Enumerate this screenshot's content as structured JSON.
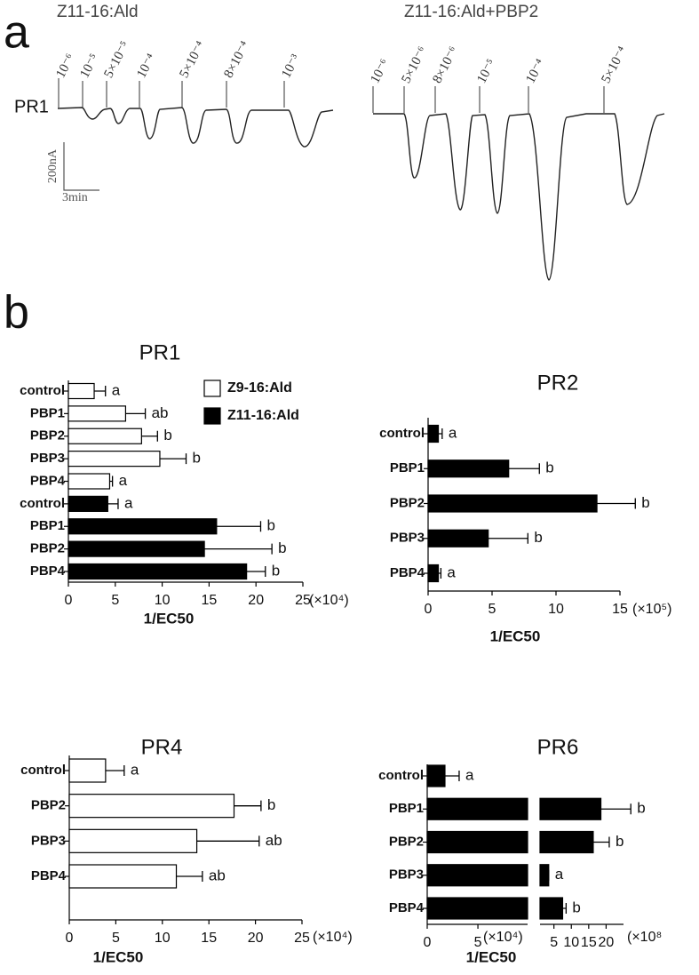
{
  "panel_a": {
    "label": "a",
    "left_title": "Z11-16:Ald",
    "right_title": "Z11-16:Ald+PBP2",
    "row_label": "PR1",
    "scale_current": "200nA",
    "scale_time": "3min",
    "left_doses": [
      "10⁻⁶",
      "10⁻⁵",
      "5×10⁻⁵",
      "10⁻⁴",
      "5×10⁻⁴",
      "8×10⁻⁴",
      "10⁻³"
    ],
    "right_doses": [
      "10⁻⁶",
      "5×10⁻⁶",
      "8×10⁻⁶",
      "10⁻⁵",
      "10⁻⁴",
      "5×10⁻⁴"
    ]
  },
  "panel_b": {
    "label": "b"
  },
  "chart_data": [
    {
      "type": "hbar",
      "title": "PR1",
      "xlabel": "1/EC50",
      "x_unit": "(×10⁴)",
      "categories": [
        "control",
        "PBP1",
        "PBP2",
        "PBP3",
        "PBP4",
        "control",
        "PBP1",
        "PBP2",
        "PBP4"
      ],
      "series": [
        {
          "name": "Z9-16:Ald",
          "color": "#ffffff",
          "values": [
            2.75,
            6.1,
            7.8,
            9.75,
            4.4,
            null,
            null,
            null,
            null
          ],
          "errors": [
            1.2,
            2.1,
            1.7,
            2.8,
            0.3,
            null,
            null,
            null,
            null
          ],
          "letters": [
            "a",
            "ab",
            "b",
            "b",
            "a",
            null,
            null,
            null,
            null
          ]
        },
        {
          "name": "Z11-16:Ald",
          "color": "#000000",
          "values": [
            null,
            null,
            null,
            null,
            null,
            4.2,
            15.8,
            14.5,
            19
          ],
          "errors": [
            null,
            null,
            null,
            null,
            null,
            1.1,
            4.7,
            7.2,
            2
          ],
          "letters": [
            null,
            null,
            null,
            null,
            null,
            "a",
            "b",
            "b",
            "b"
          ]
        }
      ],
      "xlim": [
        0,
        25
      ],
      "xticks": [
        0,
        5,
        10,
        15,
        20,
        25
      ]
    },
    {
      "type": "hbar",
      "title": "PR2",
      "xlabel": "1/EC50",
      "x_unit": "(×10⁵)",
      "categories": [
        "control",
        "PBP1",
        "PBP2",
        "PBP3",
        "PBP4"
      ],
      "series": [
        {
          "color": "#000000",
          "values": [
            0.8,
            6.3,
            13.2,
            4.7,
            0.8
          ],
          "errors": [
            0.3,
            2.4,
            3.0,
            3.1,
            0.2
          ],
          "letters": [
            "a",
            "b",
            "b",
            "b",
            "a"
          ]
        }
      ],
      "xlim": [
        0,
        15
      ],
      "xticks": [
        0,
        5,
        10,
        15
      ]
    },
    {
      "type": "hbar",
      "title": "PR4",
      "xlabel": "1/EC50",
      "x_unit": "(×10⁴)",
      "categories": [
        "control",
        "PBP2",
        "PBP3",
        "PBP4"
      ],
      "series": [
        {
          "color": "#ffffff",
          "values": [
            3.9,
            17.7,
            13.7,
            11.5
          ],
          "errors": [
            2,
            2.9,
            6.7,
            2.8
          ],
          "letters": [
            "a",
            "b",
            "ab",
            "ab"
          ]
        }
      ],
      "xlim": [
        0,
        25
      ],
      "xticks": [
        0,
        5,
        10,
        15,
        20,
        25
      ]
    },
    {
      "type": "hbar_broken",
      "title": "PR6",
      "xlabel": "1/EC50",
      "x_unit": "(×10⁴)",
      "x2_unit": "(×10⁸",
      "categories": [
        "control",
        "PBP1",
        "PBP2",
        "PBP3",
        "PBP4"
      ],
      "series": [
        {
          "color": "#000000",
          "values": [
            1.75,
            18.5,
            16.3,
            3.5,
            7.5
          ],
          "errors": [
            1.4,
            8.6,
            4.6,
            0,
            1
          ],
          "letters": [
            "a",
            "b",
            "b",
            "a",
            "b"
          ],
          "value_axis": [
            "x",
            "x2",
            "x2",
            "x2",
            "x2"
          ]
        }
      ],
      "xlim": [
        0,
        9.9
      ],
      "xticks": [
        0,
        5
      ],
      "x2lim": [
        1,
        25
      ],
      "x2ticks": [
        5,
        10,
        15,
        20
      ]
    }
  ]
}
